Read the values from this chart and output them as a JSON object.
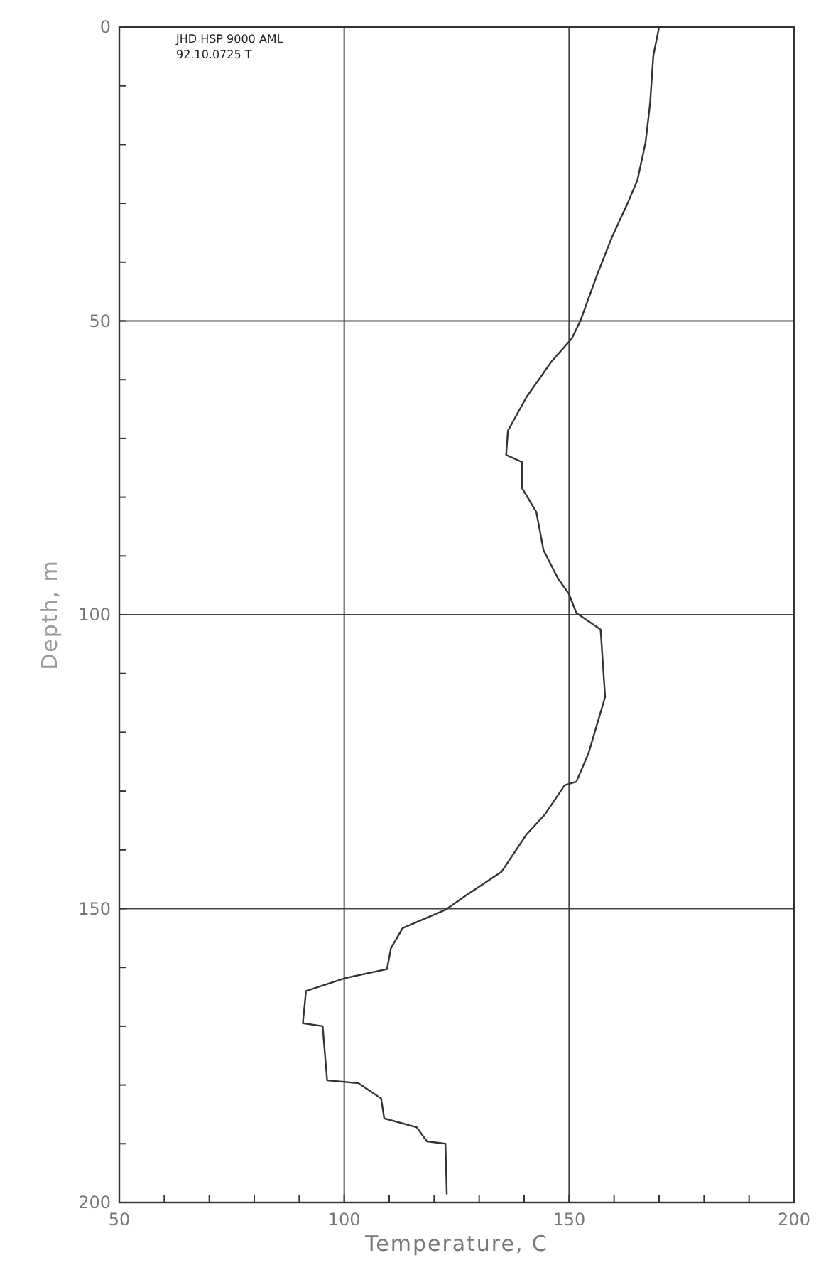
{
  "chart_data": {
    "type": "line",
    "xlabel": "Temperature, C",
    "ylabel": "Depth, m",
    "annotations": [
      "JHD HSP 9000 AML",
      "92.10.0725 T"
    ],
    "xlim": [
      50,
      200
    ],
    "ylim": [
      200,
      0
    ],
    "xticks": [
      50,
      {
        "value": 60,
        "label": null
      },
      {
        "value": 70,
        "label": null
      },
      {
        "value": 80,
        "label": null
      },
      {
        "value": 90,
        "label": null
      },
      100,
      {
        "value": 110,
        "label": null
      },
      {
        "value": 120,
        "label": null
      },
      {
        "value": 130,
        "label": null
      },
      {
        "value": 140,
        "label": null
      },
      150,
      {
        "value": 160,
        "label": null
      },
      {
        "value": 170,
        "label": null
      },
      {
        "value": 180,
        "label": null
      },
      {
        "value": 190,
        "label": null
      },
      200
    ],
    "yticks": [
      0,
      {
        "value": 10,
        "label": null
      },
      {
        "value": 20,
        "label": null
      },
      {
        "value": 30,
        "label": null
      },
      {
        "value": 40,
        "label": null
      },
      50,
      {
        "value": 60,
        "label": null
      },
      {
        "value": 70,
        "label": null
      },
      {
        "value": 80,
        "label": null
      },
      {
        "value": 90,
        "label": null
      },
      100,
      {
        "value": 110,
        "label": null
      },
      {
        "value": 120,
        "label": null
      },
      {
        "value": 130,
        "label": null
      },
      {
        "value": 140,
        "label": null
      },
      150,
      {
        "value": 160,
        "label": null
      },
      {
        "value": 170,
        "label": null
      },
      {
        "value": 180,
        "label": null
      },
      {
        "value": 190,
        "label": null
      },
      200
    ],
    "grid": true,
    "marker": "none",
    "line_style": "solid",
    "series": [
      {
        "color": "#333333",
        "x": [
          170,
          168.7,
          168,
          167,
          165.2,
          163,
          159.5,
          156.3,
          152.5,
          150.6,
          146,
          140.5,
          136.4,
          136,
          139.5,
          139.5,
          142.7,
          144.3,
          147.5,
          150,
          151.6,
          157,
          158,
          154.3,
          151.6,
          149,
          144.6,
          140.5,
          135,
          127,
          122.5,
          113,
          110.4,
          109.5,
          100.3,
          91.5,
          90.8,
          95.2,
          96.2,
          103.2,
          108.2,
          108.9,
          116.1,
          118.4,
          122.5,
          122.8
        ],
        "values": [
          0,
          5,
          13,
          19.6,
          26,
          30,
          35.8,
          42,
          50,
          53,
          57,
          63,
          68.7,
          72.8,
          74,
          78.4,
          82.5,
          89,
          93.8,
          96.5,
          99.7,
          102.5,
          114,
          123.6,
          128.4,
          129,
          134,
          137.4,
          143.7,
          147.8,
          150.2,
          153.3,
          156.7,
          160.3,
          161.8,
          164,
          169.5,
          170,
          179.2,
          179.7,
          182.3,
          185.7,
          187.2,
          189.6,
          190,
          198.5
        ]
      }
    ]
  }
}
